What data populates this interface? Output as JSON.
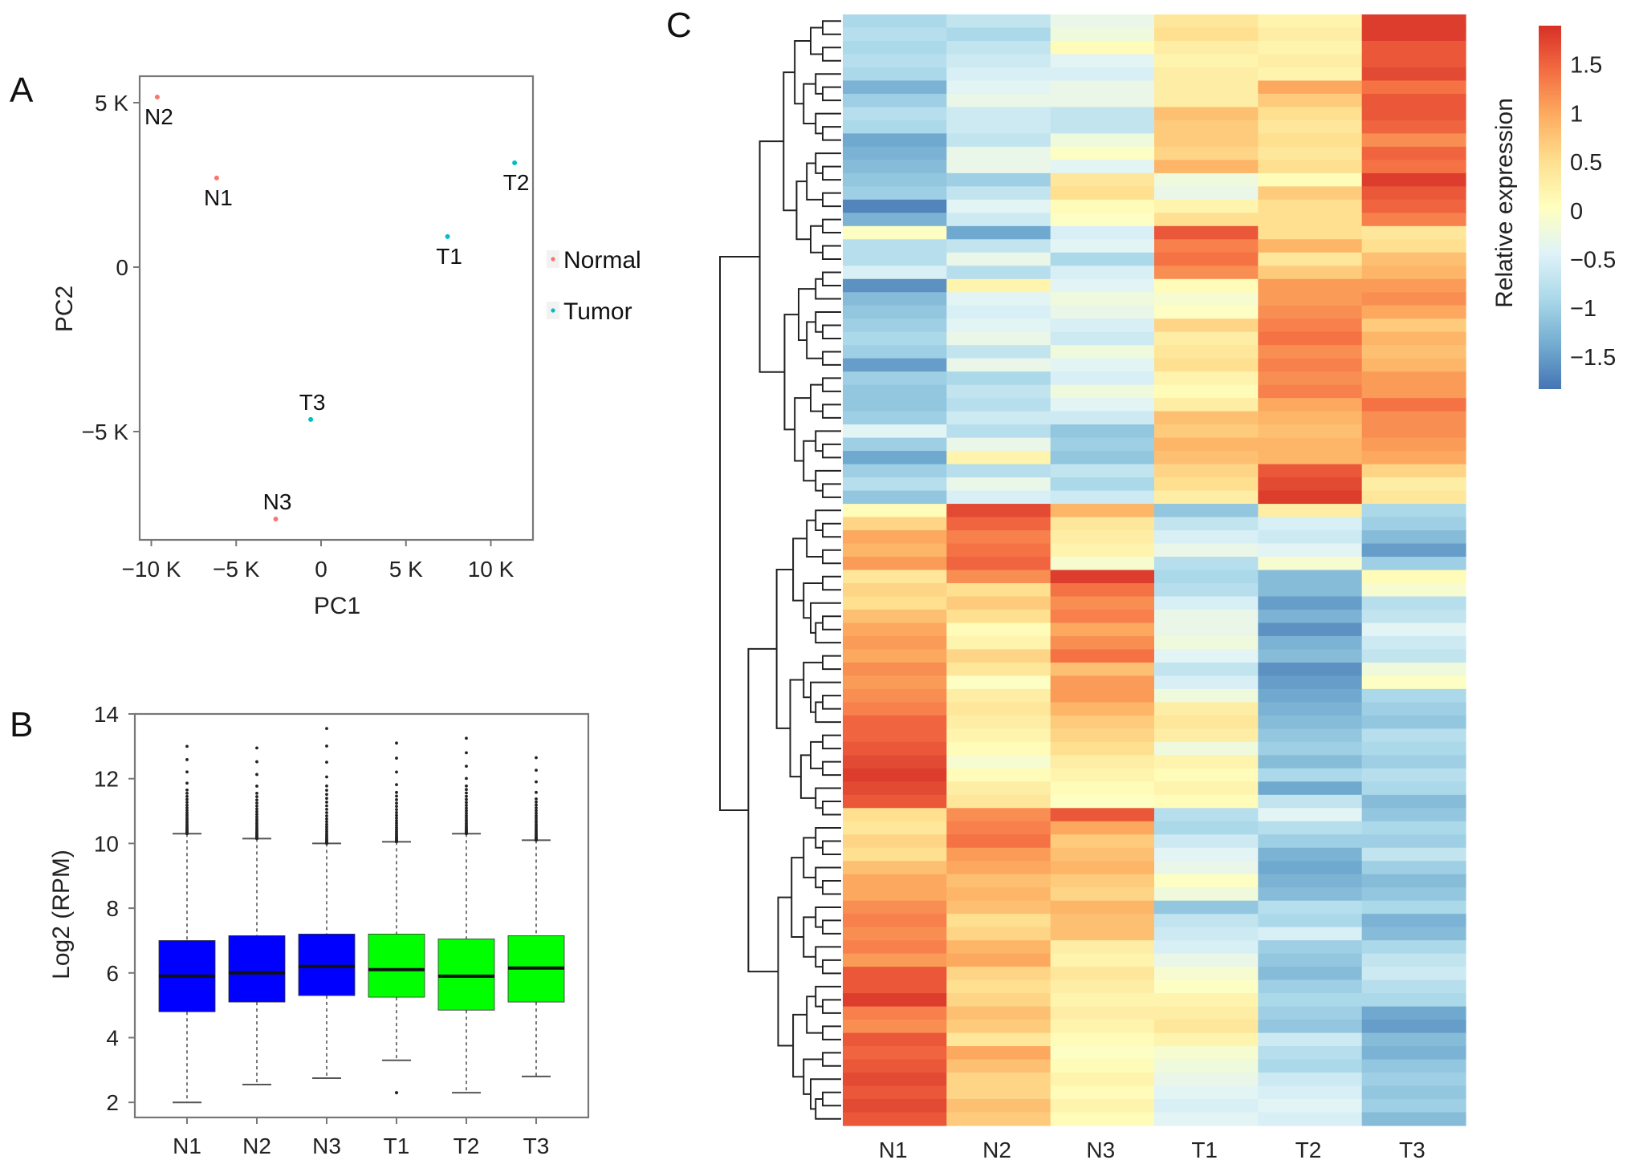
{
  "figure": {
    "panel_labels": [
      "A",
      "B",
      "C"
    ]
  },
  "chart_data": [
    {
      "panel": "A",
      "type": "scatter",
      "title": "",
      "xlabel": "PC1",
      "ylabel": "PC2",
      "xlim": [
        -10800,
        12500
      ],
      "ylim": [
        -8800,
        5800
      ],
      "xticks": [
        {
          "value": -10000,
          "label": "−10 K"
        },
        {
          "value": -5000,
          "label": "−5 K"
        },
        {
          "value": 0,
          "label": "0"
        },
        {
          "value": 5000,
          "label": "5 K"
        },
        {
          "value": 10000,
          "label": "10 K"
        }
      ],
      "yticks": [
        {
          "value": 5000,
          "label": "5 K"
        },
        {
          "value": 0,
          "label": "0"
        },
        {
          "value": -5000,
          "label": "−5 K"
        }
      ],
      "grid": false,
      "legend": {
        "position": "right",
        "entries": [
          {
            "name": "Normal",
            "color": "#f8766d"
          },
          {
            "name": "Tumor",
            "color": "#00bfc4"
          }
        ]
      },
      "points": [
        {
          "label": "N2",
          "group": "Normal",
          "x": -9650,
          "y": 5170,
          "label_pos": "below"
        },
        {
          "label": "N1",
          "group": "Normal",
          "x": -6150,
          "y": 2710,
          "label_pos": "below"
        },
        {
          "label": "N3",
          "group": "Normal",
          "x": -2670,
          "y": -7660,
          "label_pos": "above"
        },
        {
          "label": "T1",
          "group": "Tumor",
          "x": 7450,
          "y": 930,
          "label_pos": "below"
        },
        {
          "label": "T2",
          "group": "Tumor",
          "x": 11400,
          "y": 3170,
          "label_pos": "below"
        },
        {
          "label": "T3",
          "group": "Tumor",
          "x": -610,
          "y": -4630,
          "label_pos": "above"
        }
      ]
    },
    {
      "panel": "B",
      "type": "box",
      "title": "",
      "xlabel": "",
      "ylabel": "Log2 (RPM)",
      "ylim": [
        1.45,
        14.0
      ],
      "yticks": [
        2,
        4,
        6,
        8,
        10,
        12,
        14
      ],
      "grid": false,
      "categories": [
        "N1",
        "N2",
        "N3",
        "T1",
        "T2",
        "T3"
      ],
      "colors": {
        "Normal": "#0000ff",
        "Tumor": "#00ff00"
      },
      "boxes": [
        {
          "name": "N1",
          "group": "Normal",
          "whisker_low": 2.0,
          "q1": 4.8,
          "median": 5.9,
          "q3": 7.0,
          "whisker_high": 10.3,
          "outlier_max": 13.0,
          "outlier_min": null
        },
        {
          "name": "N2",
          "group": "Normal",
          "whisker_low": 2.55,
          "q1": 5.1,
          "median": 6.0,
          "q3": 7.15,
          "whisker_high": 10.15,
          "outlier_max": 12.95,
          "outlier_min": null
        },
        {
          "name": "N3",
          "group": "Normal",
          "whisker_low": 2.75,
          "q1": 5.3,
          "median": 6.2,
          "q3": 7.2,
          "whisker_high": 10.0,
          "outlier_max": 13.55,
          "outlier_min": null
        },
        {
          "name": "T1",
          "group": "Tumor",
          "whisker_low": 3.3,
          "q1": 5.25,
          "median": 6.1,
          "q3": 7.2,
          "whisker_high": 10.05,
          "outlier_max": 13.1,
          "outlier_min": 2.3
        },
        {
          "name": "T2",
          "group": "Tumor",
          "whisker_low": 2.3,
          "q1": 4.85,
          "median": 5.9,
          "q3": 7.05,
          "whisker_high": 10.3,
          "outlier_max": 13.25,
          "outlier_min": null
        },
        {
          "name": "T3",
          "group": "Tumor",
          "whisker_low": 2.8,
          "q1": 5.1,
          "median": 6.15,
          "q3": 7.15,
          "whisker_high": 10.1,
          "outlier_max": 12.65,
          "outlier_min": null
        }
      ]
    },
    {
      "panel": "C",
      "type": "heatmap",
      "title": "",
      "columns": [
        "N1",
        "N2",
        "N3",
        "T1",
        "T2",
        "T3"
      ],
      "colorbar": {
        "title": "Relative expression",
        "range": [
          -1.83,
          1.9
        ],
        "ticks": [
          1.5,
          1,
          0.5,
          0,
          -0.5,
          -1,
          -1.5
        ],
        "tick_labels": [
          "1.5",
          "1",
          "0.5",
          "0",
          "−0.5",
          "−1",
          "−1.5"
        ],
        "colors": [
          "#4575b4",
          "#74add1",
          "#abd9e9",
          "#e0f3f8",
          "#ffffbf",
          "#fee090",
          "#fdae61",
          "#f46d43",
          "#d73027"
        ]
      },
      "row_dendrogram": true,
      "rows": [
        [
          -0.9,
          -0.7,
          -0.3,
          0.4,
          0.2,
          1.8
        ],
        [
          -0.8,
          -0.9,
          -0.2,
          0.5,
          0.3,
          1.8
        ],
        [
          -0.9,
          -0.7,
          0.1,
          0.3,
          0.2,
          1.6
        ],
        [
          -0.8,
          -0.6,
          -0.4,
          0.2,
          0.3,
          1.6
        ],
        [
          -0.9,
          -0.5,
          -0.5,
          0.3,
          0.2,
          1.7
        ],
        [
          -1.3,
          -0.4,
          -0.3,
          0.3,
          1.0,
          1.4
        ],
        [
          -1.0,
          -0.3,
          -0.3,
          0.3,
          0.7,
          1.6
        ],
        [
          -0.8,
          -0.6,
          -0.7,
          0.8,
          0.5,
          1.6
        ],
        [
          -0.9,
          -0.6,
          -0.7,
          0.7,
          0.4,
          1.5
        ],
        [
          -1.4,
          -0.7,
          -0.2,
          0.7,
          0.5,
          1.2
        ],
        [
          -1.3,
          -0.3,
          0.0,
          0.6,
          0.4,
          1.5
        ],
        [
          -1.2,
          -0.3,
          -0.4,
          0.9,
          0.5,
          1.4
        ],
        [
          -1.1,
          -1.0,
          0.4,
          -0.2,
          0.1,
          1.8
        ],
        [
          -1.0,
          -0.7,
          0.5,
          -0.3,
          0.7,
          1.6
        ],
        [
          -1.7,
          -0.4,
          0.1,
          0.2,
          0.5,
          1.5
        ],
        [
          -1.3,
          -0.6,
          0.0,
          0.5,
          0.5,
          1.3
        ],
        [
          0.0,
          -1.4,
          -0.5,
          1.6,
          0.5,
          0.4
        ],
        [
          -0.8,
          -0.7,
          -0.4,
          1.3,
          0.9,
          0.5
        ],
        [
          -0.8,
          -0.3,
          -0.9,
          1.4,
          0.4,
          0.8
        ],
        [
          -0.5,
          -0.8,
          -0.5,
          1.2,
          0.7,
          0.9
        ],
        [
          -1.6,
          0.2,
          -0.4,
          0.1,
          1.1,
          1.1
        ],
        [
          -1.2,
          -0.4,
          -0.2,
          -0.1,
          1.1,
          1.2
        ],
        [
          -1.1,
          -0.5,
          -0.3,
          0.0,
          1.2,
          1.0
        ],
        [
          -1.0,
          -0.4,
          -0.5,
          0.6,
          1.3,
          0.7
        ],
        [
          -0.9,
          -0.3,
          -0.6,
          0.3,
          1.4,
          0.9
        ],
        [
          -1.0,
          -0.7,
          -0.2,
          0.4,
          1.2,
          0.8
        ],
        [
          -1.5,
          -0.3,
          -0.4,
          0.5,
          1.3,
          0.9
        ],
        [
          -1.0,
          -0.9,
          -0.5,
          0.2,
          1.2,
          1.1
        ],
        [
          -1.1,
          -0.7,
          -0.2,
          0.1,
          1.3,
          1.1
        ],
        [
          -1.1,
          -0.8,
          -0.4,
          0.3,
          1.0,
          1.4
        ],
        [
          -1.0,
          -0.6,
          -0.6,
          0.8,
          0.9,
          1.2
        ],
        [
          -0.4,
          -0.8,
          -1.1,
          0.7,
          0.8,
          1.2
        ],
        [
          -1.0,
          -0.3,
          -1.0,
          0.9,
          0.9,
          1.1
        ],
        [
          -1.4,
          0.2,
          -1.1,
          0.8,
          0.9,
          1.0
        ],
        [
          -1.0,
          -0.8,
          -0.7,
          0.6,
          1.6,
          0.6
        ],
        [
          -0.8,
          -0.3,
          -0.9,
          0.5,
          1.7,
          0.3
        ],
        [
          -1.1,
          -0.5,
          -0.6,
          0.3,
          1.8,
          0.4
        ],
        [
          0.1,
          1.7,
          0.9,
          -1.1,
          0.3,
          -0.9
        ],
        [
          0.6,
          1.5,
          0.4,
          -0.7,
          -0.5,
          -1.0
        ],
        [
          1.0,
          1.3,
          0.3,
          -0.5,
          -0.6,
          -1.2
        ],
        [
          0.9,
          1.4,
          0.2,
          -0.3,
          -0.4,
          -1.5
        ],
        [
          1.1,
          1.5,
          -0.1,
          -0.8,
          -0.1,
          -1.0
        ],
        [
          0.4,
          1.2,
          1.8,
          -0.9,
          -1.2,
          0.1
        ],
        [
          0.6,
          0.5,
          1.4,
          -0.8,
          -1.2,
          -0.1
        ],
        [
          0.5,
          0.7,
          1.2,
          -0.5,
          -1.5,
          -0.8
        ],
        [
          0.8,
          0.5,
          1.3,
          -0.3,
          -1.3,
          -0.7
        ],
        [
          1.0,
          0.1,
          1.0,
          -0.3,
          -1.6,
          -0.4
        ],
        [
          1.1,
          0.2,
          1.2,
          -0.2,
          -1.3,
          -0.6
        ],
        [
          1.0,
          0.6,
          1.4,
          -0.4,
          -1.2,
          -0.7
        ],
        [
          1.2,
          0.4,
          0.8,
          -0.7,
          -1.6,
          -0.2
        ],
        [
          1.1,
          0.0,
          1.1,
          -0.5,
          -1.5,
          0.0
        ],
        [
          1.2,
          0.3,
          1.1,
          -0.2,
          -1.4,
          -0.9
        ],
        [
          1.3,
          0.4,
          0.9,
          0.3,
          -1.3,
          -1.0
        ],
        [
          1.5,
          0.3,
          0.7,
          0.4,
          -1.2,
          -1.1
        ],
        [
          1.5,
          0.2,
          0.6,
          0.3,
          -1.1,
          -0.8
        ],
        [
          1.6,
          0.1,
          0.5,
          -0.2,
          -1.0,
          -0.9
        ],
        [
          1.7,
          -0.1,
          0.3,
          0.2,
          -1.2,
          -1.0
        ],
        [
          1.8,
          0.1,
          0.2,
          0.1,
          -0.9,
          -0.8
        ],
        [
          1.7,
          0.3,
          0.1,
          0.2,
          -1.4,
          -0.9
        ],
        [
          1.6,
          0.4,
          0.0,
          0.1,
          -0.7,
          -1.2
        ],
        [
          0.5,
          1.2,
          1.6,
          -0.8,
          -0.4,
          -1.1
        ],
        [
          0.4,
          1.3,
          1.0,
          -0.9,
          -0.8,
          -0.9
        ],
        [
          0.6,
          1.4,
          0.7,
          -0.6,
          -1.0,
          -1.0
        ],
        [
          0.5,
          1.1,
          0.8,
          -0.4,
          -1.3,
          -0.7
        ],
        [
          0.8,
          1.0,
          0.9,
          -0.3,
          -1.4,
          -1.0
        ],
        [
          1.0,
          0.8,
          0.7,
          0.0,
          -1.3,
          -1.2
        ],
        [
          1.0,
          0.9,
          0.6,
          -0.2,
          -1.2,
          -1.1
        ],
        [
          1.2,
          0.8,
          0.9,
          -1.1,
          -0.8,
          -0.9
        ],
        [
          1.3,
          0.5,
          0.8,
          -0.7,
          -0.9,
          -1.3
        ],
        [
          1.2,
          0.6,
          0.8,
          -0.6,
          -0.5,
          -1.2
        ],
        [
          1.3,
          0.9,
          0.3,
          -0.5,
          -1.0,
          -0.9
        ],
        [
          1.1,
          1.0,
          0.2,
          -0.3,
          -1.1,
          -0.7
        ],
        [
          1.6,
          0.6,
          0.4,
          -0.1,
          -1.2,
          -0.6
        ],
        [
          1.6,
          0.5,
          0.3,
          0.0,
          -1.0,
          -0.8
        ],
        [
          1.8,
          0.6,
          0.2,
          0.2,
          -0.9,
          -0.9
        ],
        [
          1.3,
          0.8,
          0.3,
          0.3,
          -1.0,
          -1.4
        ],
        [
          1.2,
          0.7,
          0.2,
          0.4,
          -1.1,
          -1.5
        ],
        [
          1.6,
          0.4,
          0.1,
          0.2,
          -0.6,
          -1.2
        ],
        [
          1.5,
          1.0,
          0.0,
          -0.1,
          -0.8,
          -1.3
        ],
        [
          1.6,
          0.8,
          0.1,
          -0.2,
          -0.9,
          -1.1
        ],
        [
          1.7,
          0.6,
          0.2,
          -0.3,
          -0.6,
          -1.0
        ],
        [
          1.6,
          0.6,
          0.1,
          -0.4,
          -0.5,
          -1.1
        ],
        [
          1.7,
          0.8,
          0.2,
          -0.5,
          -0.4,
          -1.0
        ],
        [
          1.6,
          0.7,
          0.1,
          -0.4,
          -0.5,
          -1.2
        ]
      ]
    }
  ]
}
